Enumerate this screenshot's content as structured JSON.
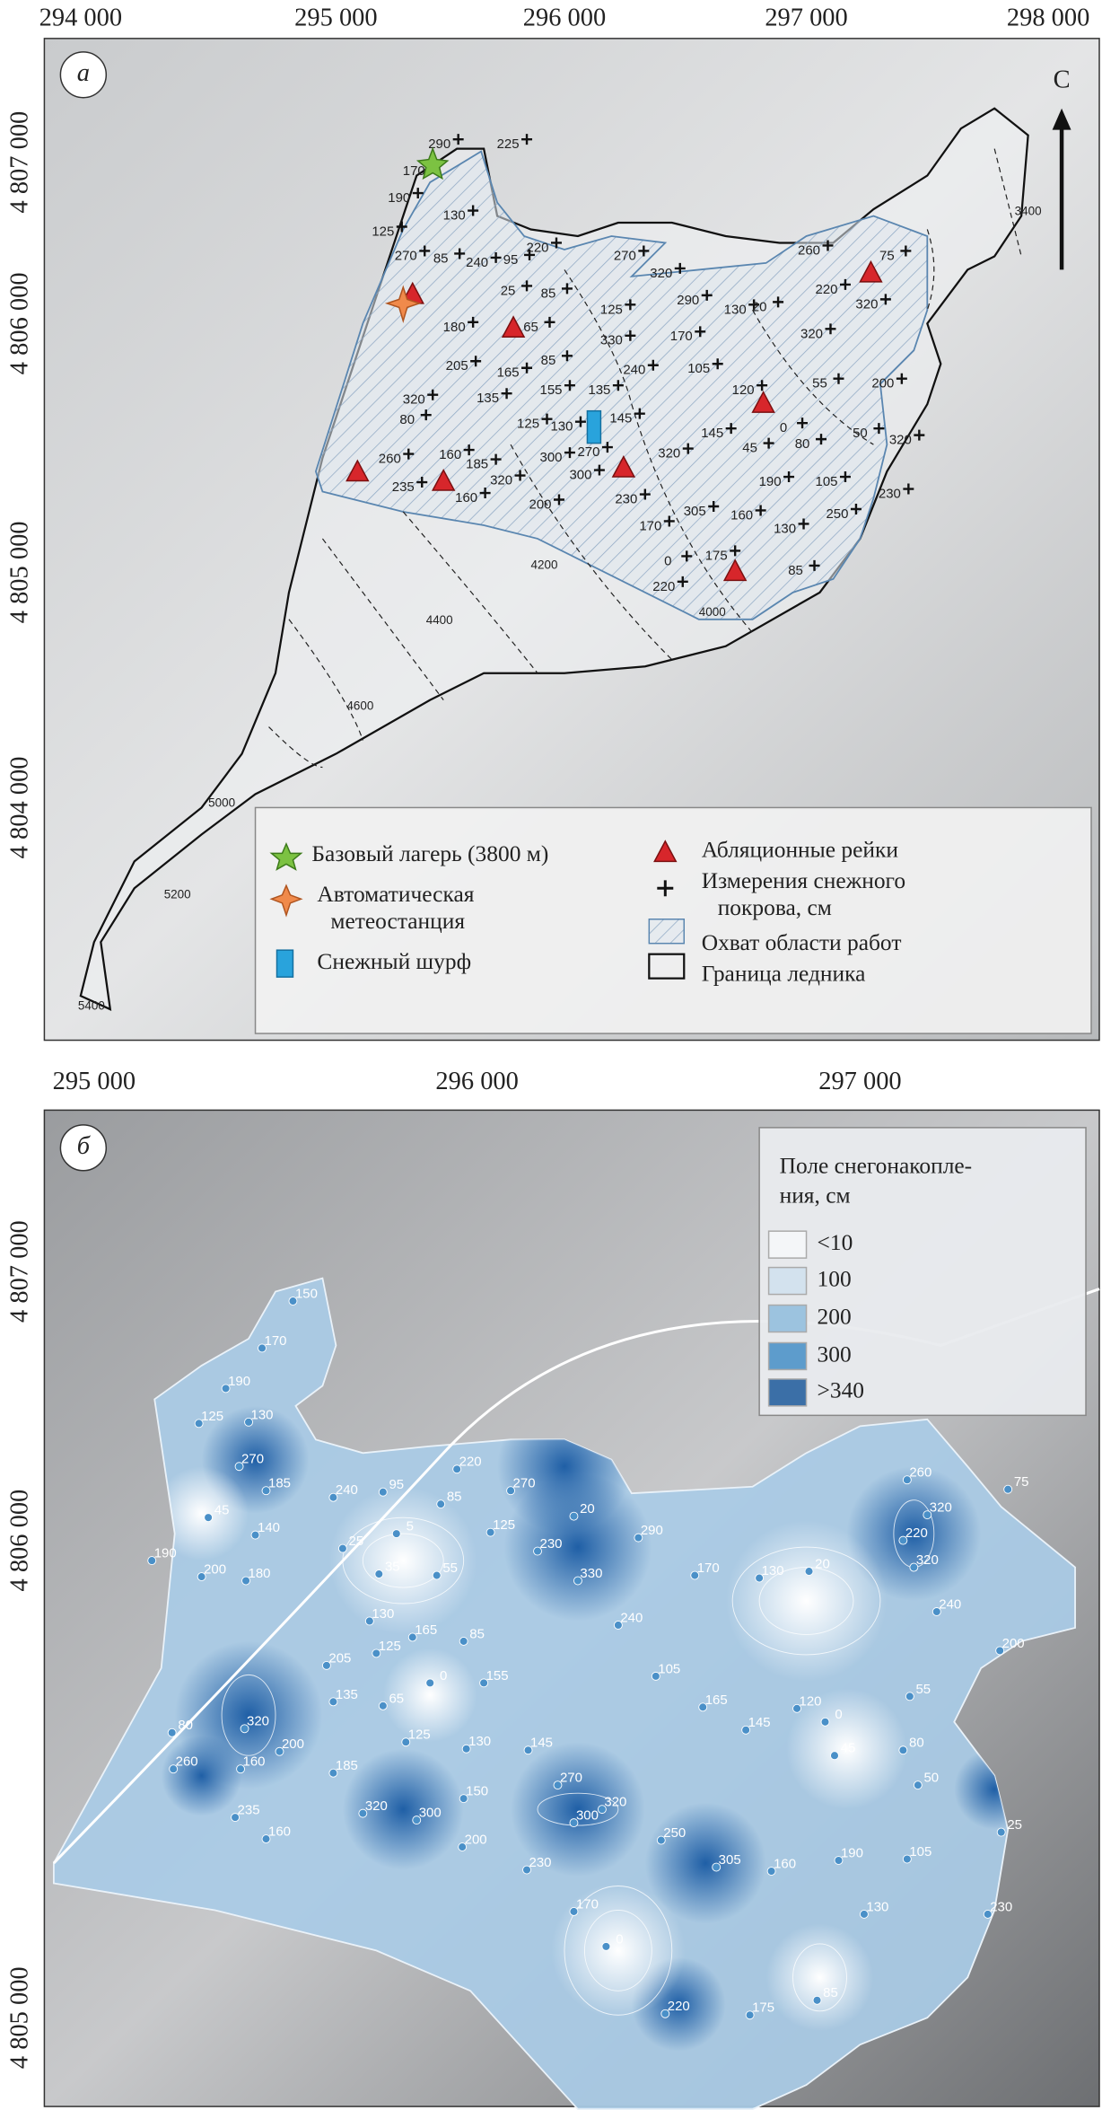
{
  "panel_a": {
    "label": "а",
    "north": "С",
    "x_labels": [
      "294 000",
      "295 000",
      "296 000",
      "297 000",
      "298 000"
    ],
    "y_labels": [
      "4 807 000",
      "4 806 000",
      "4 805 000",
      "4 804 000"
    ],
    "legend": [
      "Базовый лагерь (3800 м)",
      "Автоматическая",
      "метеостанция",
      "Снежный шурф",
      "Абляционные рейки",
      "Измерения снежного",
      "покрова, см",
      "Охват области работ",
      "Граница ледника"
    ],
    "elevation_labels": [
      "3400",
      "4200",
      "4400",
      "4600",
      "4000",
      "5000",
      "5200",
      "5400"
    ],
    "depth_labels": [
      "290",
      "225",
      "170",
      "190",
      "130",
      "125",
      "270",
      "85",
      "240",
      "95",
      "220",
      "270",
      "320",
      "25",
      "85",
      "125",
      "290",
      "180",
      "65",
      "330",
      "170",
      "130",
      "20",
      "220",
      "260",
      "75",
      "320",
      "320",
      "205",
      "165",
      "85",
      "240",
      "105",
      "55",
      "200",
      "135",
      "155",
      "135",
      "120",
      "0",
      "320",
      "145",
      "125",
      "130",
      "80",
      "145",
      "45",
      "80",
      "50",
      "320",
      "260",
      "160",
      "300",
      "270",
      "300",
      "320",
      "185",
      "235",
      "320",
      "160",
      "230",
      "190",
      "105",
      "230",
      "200",
      "305",
      "160",
      "250",
      "170",
      "130",
      "0",
      "175",
      "220",
      "85"
    ]
  },
  "panel_b": {
    "label": "б",
    "x_labels": [
      "295 000",
      "296 000",
      "297 000"
    ],
    "y_labels": [
      "4 807 000",
      "4 806 000",
      "4 805 000"
    ],
    "legend_title": [
      "Поле снегонакопле-",
      "ния, см"
    ],
    "legend_items": [
      "<10",
      "100",
      "200",
      "300",
      ">340"
    ],
    "depth_labels": [
      "150",
      "170",
      "190",
      "125",
      "130",
      "270",
      "185",
      "45",
      "140",
      "190",
      "200",
      "180",
      "240",
      "95",
      "85",
      "220",
      "270",
      "20",
      "125",
      "5",
      "25",
      "230",
      "290",
      "35",
      "55",
      "330",
      "170",
      "130",
      "20",
      "260",
      "75",
      "320",
      "220",
      "320",
      "240",
      "200",
      "130",
      "165",
      "85",
      "240",
      "125",
      "205",
      "105",
      "0",
      "155",
      "135",
      "65",
      "165",
      "120",
      "0",
      "55",
      "80",
      "145",
      "320",
      "200",
      "45",
      "80",
      "125",
      "130",
      "145",
      "160",
      "185",
      "50",
      "260",
      "270",
      "150",
      "320",
      "300",
      "320",
      "300",
      "235",
      "25",
      "250",
      "160",
      "200",
      "190",
      "105",
      "305",
      "160",
      "230",
      "130",
      "230",
      "170",
      "0",
      "220",
      "175",
      "85"
    ]
  }
}
